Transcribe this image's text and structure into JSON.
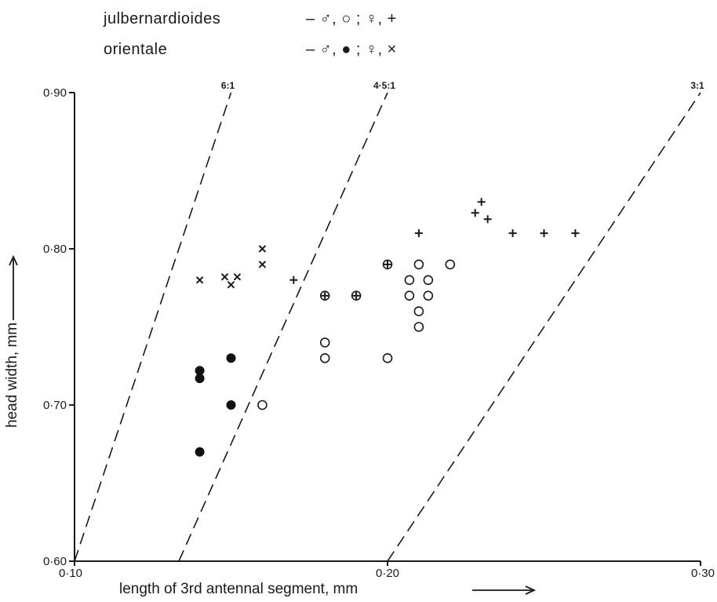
{
  "legend": {
    "row1": {
      "name": "julbernardioides",
      "symbols": "–  ♂,  ○ ;  ♀,  +"
    },
    "row2": {
      "name": "orientale",
      "symbols": "–  ♂,  ● ;  ♀,  ×"
    }
  },
  "chart_data": {
    "type": "scatter",
    "title": "",
    "xlabel": "length of 3rd antennal segment, mm",
    "ylabel": "head width, mm",
    "xlim": [
      0.1,
      0.3
    ],
    "ylim": [
      0.6,
      0.9
    ],
    "x_ticks": [
      {
        "value": 0.1,
        "label": "0·10"
      },
      {
        "value": 0.2,
        "label": "0·20"
      },
      {
        "value": 0.3,
        "label": "0·30"
      }
    ],
    "y_ticks": [
      {
        "value": 0.6,
        "label": "0·60"
      },
      {
        "value": 0.7,
        "label": "0·70"
      },
      {
        "value": 0.8,
        "label": "0·80"
      },
      {
        "value": 0.9,
        "label": "0·90"
      }
    ],
    "grid": false,
    "ratio_lines": [
      {
        "label": "6:1",
        "ratio": 6.0
      },
      {
        "label": "4·5:1",
        "ratio": 4.5
      },
      {
        "label": "3:1",
        "ratio": 3.0
      }
    ],
    "series": [
      {
        "marker": "open-circle",
        "points": [
          [
            0.16,
            0.7
          ],
          [
            0.18,
            0.74
          ],
          [
            0.18,
            0.73
          ],
          [
            0.2,
            0.73
          ],
          [
            0.21,
            0.79
          ],
          [
            0.207,
            0.78
          ],
          [
            0.213,
            0.78
          ],
          [
            0.207,
            0.77
          ],
          [
            0.213,
            0.77
          ],
          [
            0.21,
            0.76
          ],
          [
            0.21,
            0.75
          ],
          [
            0.22,
            0.79
          ],
          [
            0.18,
            0.77
          ],
          [
            0.19,
            0.77
          ],
          [
            0.2,
            0.79
          ]
        ]
      },
      {
        "marker": "plus",
        "points": [
          [
            0.17,
            0.78
          ],
          [
            0.18,
            0.77
          ],
          [
            0.19,
            0.77
          ],
          [
            0.2,
            0.79
          ],
          [
            0.21,
            0.81
          ],
          [
            0.23,
            0.83
          ],
          [
            0.228,
            0.823
          ],
          [
            0.232,
            0.819
          ],
          [
            0.24,
            0.81
          ],
          [
            0.25,
            0.81
          ],
          [
            0.26,
            0.81
          ]
        ]
      },
      {
        "marker": "filled-circle",
        "points": [
          [
            0.14,
            0.722
          ],
          [
            0.14,
            0.717
          ],
          [
            0.15,
            0.73
          ],
          [
            0.15,
            0.7
          ],
          [
            0.14,
            0.67
          ]
        ]
      },
      {
        "marker": "cross",
        "points": [
          [
            0.14,
            0.78
          ],
          [
            0.148,
            0.782
          ],
          [
            0.152,
            0.782
          ],
          [
            0.15,
            0.777
          ],
          [
            0.16,
            0.8
          ],
          [
            0.16,
            0.79
          ]
        ]
      }
    ]
  }
}
